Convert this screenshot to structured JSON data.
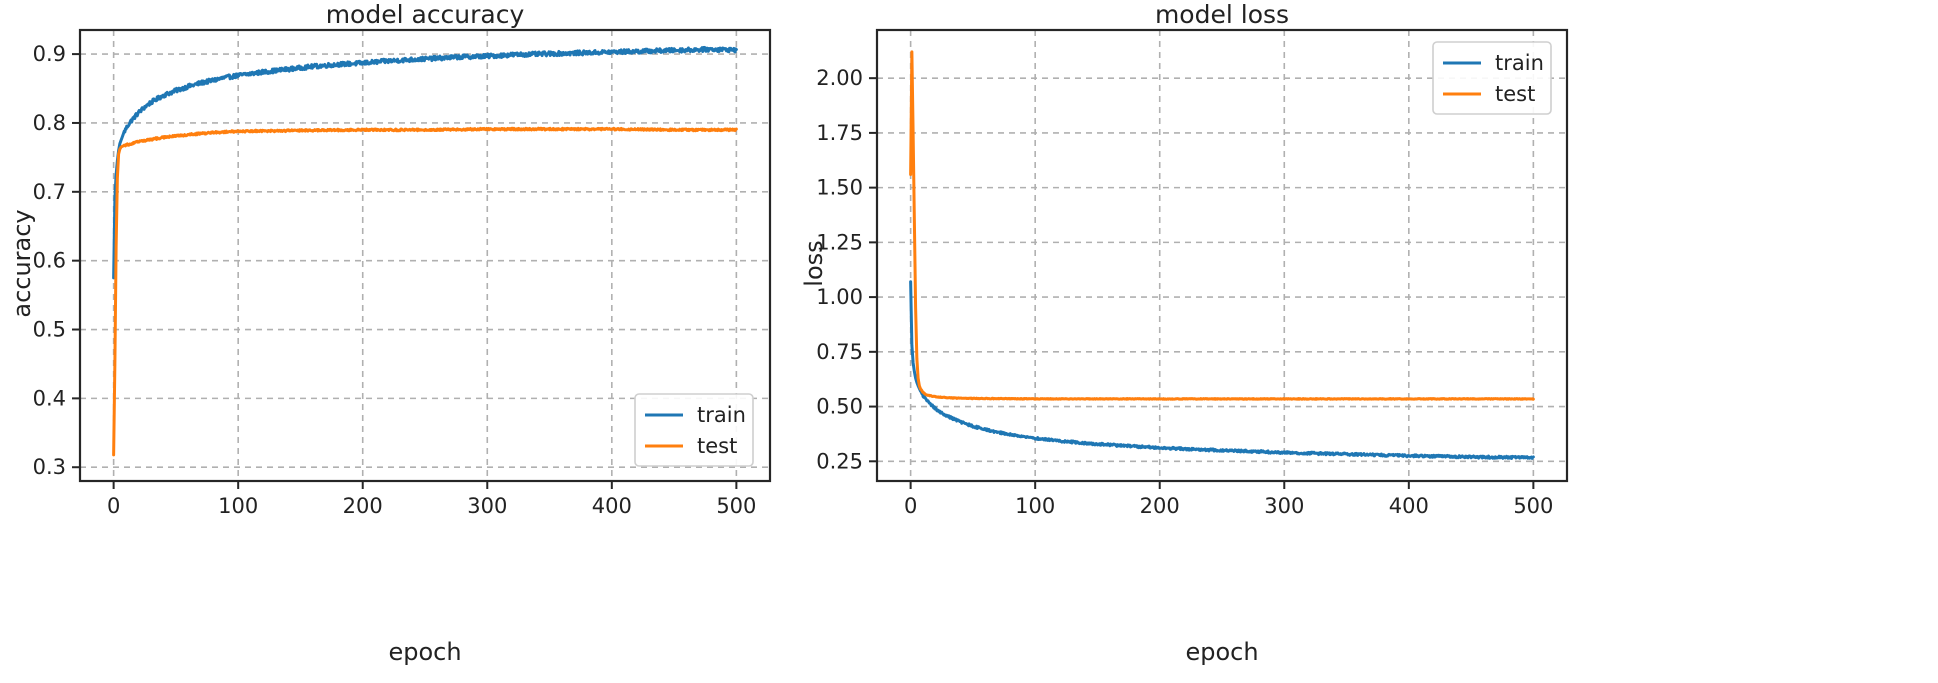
{
  "chart_data": [
    {
      "type": "line",
      "title": "model accuracy",
      "xlabel": "epoch",
      "ylabel": "accuracy",
      "xlim": [
        -27,
        527
      ],
      "ylim": [
        0.28,
        0.935
      ],
      "xticks": [
        0,
        100,
        200,
        300,
        400,
        500
      ],
      "yticks": [
        0.3,
        0.4,
        0.5,
        0.6,
        0.7,
        0.8,
        0.9
      ],
      "ytick_labels": [
        "0.3",
        "0.4",
        "0.5",
        "0.6",
        "0.7",
        "0.8",
        "0.9"
      ],
      "grid": true,
      "legend_position": "lower-right",
      "series": [
        {
          "name": "train",
          "color": "#1f77b4",
          "noise": 0.003,
          "x": [
            0,
            1,
            2,
            3,
            4,
            5,
            6,
            8,
            10,
            12,
            15,
            20,
            25,
            30,
            40,
            50,
            60,
            70,
            80,
            90,
            100,
            120,
            140,
            160,
            180,
            200,
            220,
            240,
            260,
            280,
            300,
            320,
            340,
            360,
            380,
            400,
            420,
            440,
            460,
            480,
            500
          ],
          "y": [
            0.575,
            0.69,
            0.725,
            0.745,
            0.76,
            0.77,
            0.775,
            0.785,
            0.792,
            0.798,
            0.805,
            0.815,
            0.823,
            0.83,
            0.84,
            0.847,
            0.853,
            0.858,
            0.862,
            0.866,
            0.869,
            0.874,
            0.878,
            0.882,
            0.885,
            0.887,
            0.89,
            0.892,
            0.894,
            0.896,
            0.897,
            0.899,
            0.9,
            0.901,
            0.902,
            0.903,
            0.904,
            0.905,
            0.906,
            0.907,
            0.906
          ]
        },
        {
          "name": "test",
          "color": "#ff7f0e",
          "noise": 0.0013,
          "x": [
            0,
            1,
            2,
            3,
            4,
            5,
            6,
            8,
            10,
            15,
            20,
            30,
            40,
            50,
            60,
            80,
            100,
            150,
            200,
            250,
            300,
            350,
            400,
            450,
            500
          ],
          "y": [
            0.318,
            0.45,
            0.62,
            0.72,
            0.755,
            0.762,
            0.765,
            0.767,
            0.768,
            0.77,
            0.773,
            0.776,
            0.779,
            0.781,
            0.783,
            0.786,
            0.788,
            0.789,
            0.79,
            0.79,
            0.791,
            0.791,
            0.791,
            0.79,
            0.79
          ]
        }
      ]
    },
    {
      "type": "line",
      "title": "model loss",
      "xlabel": "epoch",
      "ylabel": "loss",
      "xlim": [
        -27,
        527
      ],
      "ylim": [
        0.16,
        2.22
      ],
      "xticks": [
        0,
        100,
        200,
        300,
        400,
        500
      ],
      "yticks": [
        0.25,
        0.5,
        0.75,
        1.0,
        1.25,
        1.5,
        1.75,
        2.0
      ],
      "ytick_labels": [
        "0.25",
        "0.50",
        "0.75",
        "1.00",
        "1.25",
        "1.50",
        "1.75",
        "2.00"
      ],
      "grid": true,
      "legend_position": "top-right",
      "series": [
        {
          "name": "train",
          "color": "#1f77b4",
          "noise": 0.005,
          "x": [
            0,
            1,
            2,
            3,
            4,
            5,
            6,
            8,
            10,
            12,
            15,
            20,
            25,
            30,
            40,
            50,
            60,
            70,
            80,
            100,
            120,
            140,
            160,
            180,
            200,
            220,
            240,
            260,
            280,
            300,
            320,
            340,
            360,
            380,
            400,
            420,
            440,
            460,
            480,
            500
          ],
          "y": [
            1.07,
            0.78,
            0.7,
            0.66,
            0.63,
            0.61,
            0.595,
            0.57,
            0.55,
            0.535,
            0.515,
            0.49,
            0.47,
            0.455,
            0.43,
            0.41,
            0.395,
            0.383,
            0.372,
            0.355,
            0.343,
            0.333,
            0.325,
            0.318,
            0.312,
            0.307,
            0.302,
            0.298,
            0.294,
            0.29,
            0.287,
            0.284,
            0.281,
            0.278,
            0.275,
            0.273,
            0.271,
            0.269,
            0.268,
            0.267
          ]
        },
        {
          "name": "test",
          "color": "#ff7f0e",
          "noise": 0.0015,
          "x": [
            0,
            1,
            2,
            3,
            4,
            5,
            6,
            7,
            8,
            10,
            12,
            15,
            20,
            30,
            50,
            100,
            200,
            300,
            400,
            500
          ],
          "y": [
            1.56,
            2.12,
            1.75,
            1.35,
            0.95,
            0.72,
            0.63,
            0.595,
            0.58,
            0.565,
            0.555,
            0.55,
            0.545,
            0.54,
            0.537,
            0.535,
            0.535,
            0.535,
            0.535,
            0.535
          ]
        }
      ]
    }
  ]
}
